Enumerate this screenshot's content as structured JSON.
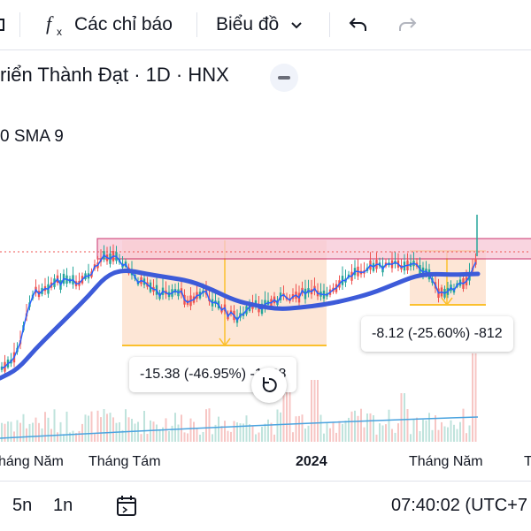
{
  "toolbar": {
    "indicators_icon": "fx-icon",
    "indicators_label": "Các chỉ báo",
    "chart_type_label": "Biểu đồ",
    "undo_icon": "undo-icon",
    "redo_icon": "redo-icon"
  },
  "legend": {
    "title": "riển Thành Đạt · 1D · HNX",
    "indicator": "0 SMA 9"
  },
  "measurements": [
    {
      "label": "-15.38 (-46.95%) -1538"
    },
    {
      "label": "-8.12 (-25.60%) -812"
    }
  ],
  "time_axis": {
    "labels": [
      "háng Năm",
      "Tháng Tám",
      "2024",
      "Tháng Năm",
      "T"
    ]
  },
  "bottom_bar": {
    "range_5d": "5n",
    "range_1d": "1n",
    "date_range_icon": "calendar-range-icon",
    "time": "07:40:02 (UTC+7"
  },
  "colors": {
    "price_line": "#2962ff",
    "sma_line": "#3d5bd9",
    "up_candle": "#26a69a",
    "down_candle": "#ef5350",
    "zone_fill": "#fde2cf",
    "resistance_fill": "#f8c8d6",
    "resistance_border": "#c2185b",
    "target_line": "#fbc02d"
  }
}
